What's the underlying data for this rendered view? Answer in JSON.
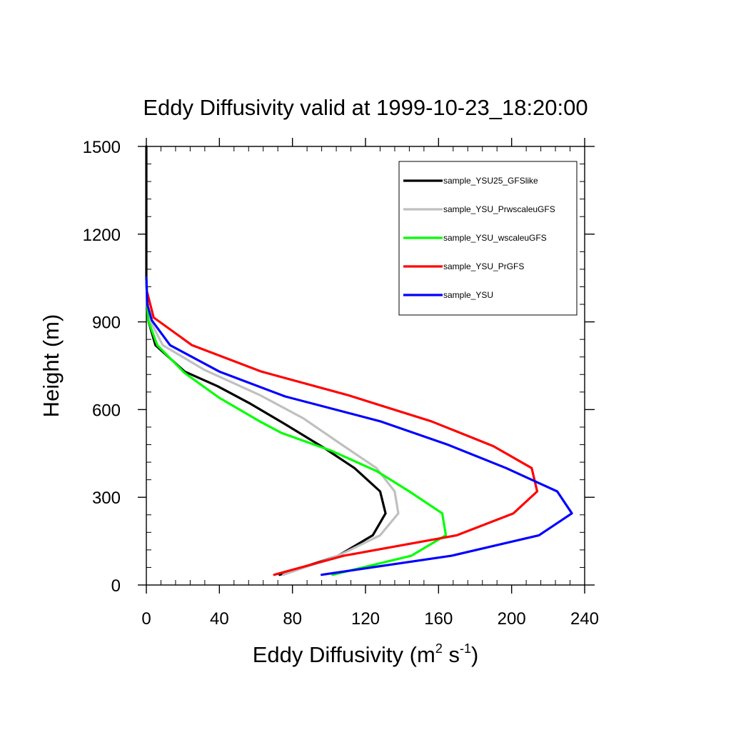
{
  "chart_data": {
    "type": "line",
    "title": "Eddy Diffusivity valid at 1999-10-23_18:20:00",
    "xlabel": {
      "main": "Eddy Diffusivity (m",
      "sup1": "2",
      "mid": " s",
      "sup2": "-1",
      "end": ")"
    },
    "ylabel": "Height (m)",
    "xlim": [
      0,
      240
    ],
    "ylim": [
      0,
      1500
    ],
    "x_ticks": [
      0,
      40,
      80,
      120,
      160,
      200,
      240
    ],
    "x_tick_labels": [
      "0",
      "40",
      "80",
      "120",
      "160",
      "200",
      "240"
    ],
    "x_minor_step": 8,
    "y_ticks": [
      0,
      300,
      600,
      900,
      1200,
      1500
    ],
    "y_tick_labels": [
      "0",
      "300",
      "600",
      "900",
      "1200",
      "1500"
    ],
    "y_minor_step": 60,
    "grid": false,
    "legend_position": "top-right",
    "series": [
      {
        "name": "sample_YSU25_GFSlike",
        "color": "#000000",
        "points": [
          [
            73,
            35
          ],
          [
            105,
            100
          ],
          [
            124,
            170
          ],
          [
            131,
            245
          ],
          [
            128,
            320
          ],
          [
            114,
            400
          ],
          [
            97,
            470
          ],
          [
            76,
            550
          ],
          [
            57,
            620
          ],
          [
            39,
            680
          ],
          [
            21,
            730
          ],
          [
            5,
            820
          ],
          [
            1,
            905
          ],
          [
            0.5,
            960
          ],
          [
            0,
            1050
          ],
          [
            0,
            1300
          ],
          [
            0,
            1500
          ]
        ]
      },
      {
        "name": "sample_YSU_PrwscaleuGFS",
        "color": "#c0c0c0",
        "points": [
          [
            75,
            35
          ],
          [
            105,
            100
          ],
          [
            128,
            170
          ],
          [
            138,
            245
          ],
          [
            136,
            320
          ],
          [
            126,
            400
          ],
          [
            107,
            480
          ],
          [
            86,
            570
          ],
          [
            62,
            650
          ],
          [
            32,
            735
          ],
          [
            9,
            820
          ],
          [
            2,
            905
          ],
          [
            0.5,
            960
          ],
          [
            0,
            1050
          ]
        ]
      },
      {
        "name": "sample_YSU_wscaleuGFS",
        "color": "#00ff00",
        "points": [
          [
            102,
            35
          ],
          [
            145,
            100
          ],
          [
            164,
            170
          ],
          [
            162,
            245
          ],
          [
            144,
            320
          ],
          [
            126,
            390
          ],
          [
            101,
            460
          ],
          [
            74,
            520
          ],
          [
            62,
            560
          ],
          [
            40,
            640
          ],
          [
            21,
            725
          ],
          [
            6,
            820
          ],
          [
            1,
            905
          ],
          [
            0.5,
            960
          ],
          [
            0,
            1050
          ]
        ]
      },
      {
        "name": "sample_YSU_PrGFS",
        "color": "#ff0000",
        "points": [
          [
            70,
            35
          ],
          [
            108,
            100
          ],
          [
            170,
            170
          ],
          [
            201,
            245
          ],
          [
            214,
            320
          ],
          [
            211,
            400
          ],
          [
            190,
            475
          ],
          [
            156,
            560
          ],
          [
            110,
            650
          ],
          [
            63,
            730
          ],
          [
            25,
            820
          ],
          [
            4,
            915
          ],
          [
            0.5,
            1000
          ]
        ]
      },
      {
        "name": "sample_YSU",
        "color": "#0000ff",
        "points": [
          [
            96,
            35
          ],
          [
            167,
            100
          ],
          [
            215,
            170
          ],
          [
            233,
            245
          ],
          [
            225,
            320
          ],
          [
            197,
            400
          ],
          [
            165,
            480
          ],
          [
            128,
            560
          ],
          [
            76,
            645
          ],
          [
            40,
            730
          ],
          [
            13,
            820
          ],
          [
            3,
            905
          ],
          [
            0.5,
            960
          ],
          [
            0,
            1050
          ]
        ]
      }
    ]
  }
}
